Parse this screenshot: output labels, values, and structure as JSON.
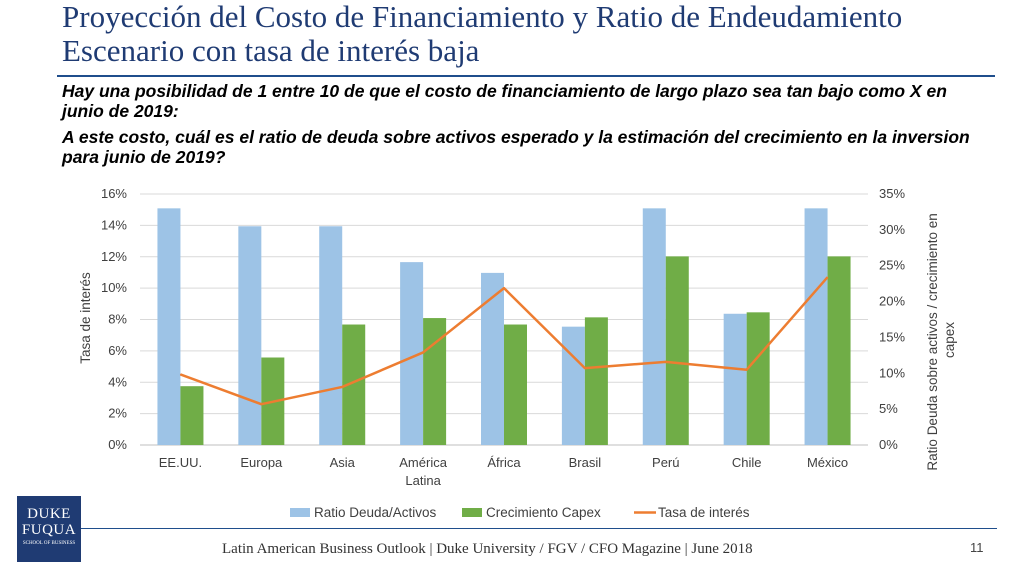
{
  "slide": {
    "title_line1": "Proyección del Costo de Financiamiento y Ratio de Endeudamiento",
    "title_line2": "Escenario con tasa de interés baja",
    "question1": "Hay una posibilidad de 1 entre 10 de que el costo de financiamiento de largo plazo sea tan bajo como X en junio de 2019:",
    "question2": "A este costo, cuál es el ratio de deuda sobre activos esperado y la estimación del crecimiento en la inversion para junio de 2019?",
    "footer": "Latin American Business Outlook | Duke University / FGV / CFO Magazine | June 2018",
    "page_number": "11",
    "logo": {
      "line1": "DUKE",
      "line2": "FUQUA",
      "line3": "SCHOOL OF BUSINESS"
    }
  },
  "colors": {
    "ratio": "#9dc3e6",
    "capex": "#70ad47",
    "tasa": "#ed7d31",
    "grid": "#d9d9d9",
    "title": "#1f3b73"
  },
  "chart_data": {
    "type": "bar",
    "categories": [
      "EE.UU.",
      "Europa",
      "Asia",
      "América Latina",
      "África",
      "Brasil",
      "Perú",
      "Chile",
      "México"
    ],
    "category_lines": [
      [
        "EE.UU."
      ],
      [
        "Europa"
      ],
      [
        "Asia"
      ],
      [
        "América",
        "Latina"
      ],
      [
        "África"
      ],
      [
        "Brasil"
      ],
      [
        "Perú"
      ],
      [
        "Chile"
      ],
      [
        "México"
      ]
    ],
    "series": [
      {
        "name": "Ratio Deuda/Activos",
        "type": "bar",
        "axis": "right",
        "values": [
          33,
          30.5,
          30.5,
          25.5,
          24,
          16.5,
          33,
          18.3,
          33
        ]
      },
      {
        "name": "Crecimiento Capex",
        "type": "bar",
        "axis": "right",
        "values": [
          8.2,
          12.2,
          16.8,
          17.7,
          16.8,
          17.8,
          26.3,
          18.5,
          26.3
        ]
      },
      {
        "name": "Tasa de interés",
        "type": "line",
        "axis": "left",
        "values": [
          4.5,
          2.6,
          3.7,
          5.9,
          10.0,
          4.9,
          5.3,
          4.8,
          10.7
        ]
      }
    ],
    "ylabel_left": "Tasa de interés",
    "ylabel_right": "Ratio Deuda sobre activos / crecimiento en capex",
    "ylim_left": [
      0,
      16
    ],
    "yticks_left": [
      "0%",
      "2%",
      "4%",
      "6%",
      "8%",
      "10%",
      "12%",
      "14%",
      "16%"
    ],
    "ylim_right": [
      0,
      35
    ],
    "yticks_right": [
      "0%",
      "5%",
      "10%",
      "15%",
      "20%",
      "25%",
      "30%",
      "35%"
    ],
    "legend": [
      "Ratio Deuda/Activos",
      "Crecimiento Capex",
      "Tasa de interés"
    ],
    "legend_position": "bottom",
    "grid": true
  }
}
